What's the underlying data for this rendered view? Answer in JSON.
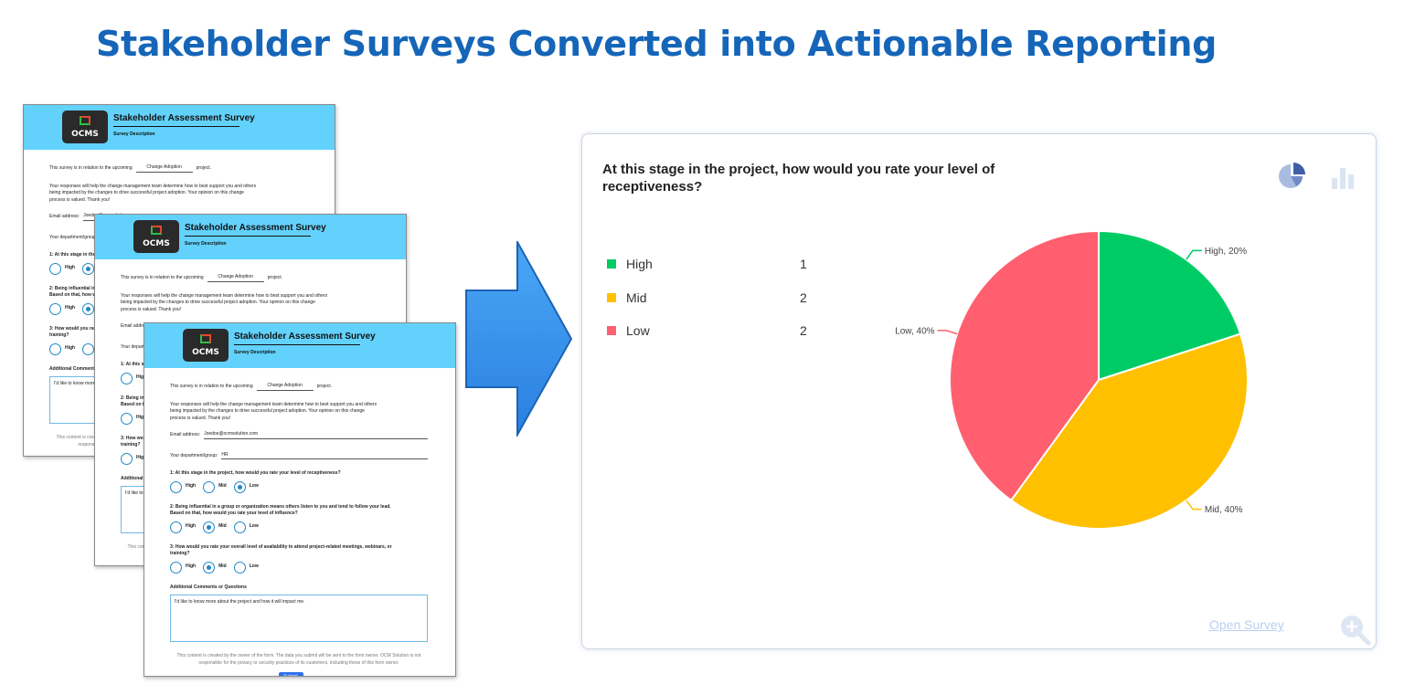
{
  "page": {
    "title": "Stakeholder Surveys Converted into Actionable Reporting"
  },
  "survey_form": {
    "logo_text": "OCMS",
    "title": "Stakeholder Assessment Survey",
    "description": "Survey Description",
    "relation_prefix": "This survey is in relation to the upcoming",
    "project_name": "Change Adoption",
    "relation_suffix": "project.",
    "intro": "Your responses will help the change management team determine how to best support you and others being impacted by the changes to drive successful project adoption. Your opinion on this change process is valued. Thank you!",
    "email_label": "Email address:",
    "email_value": "Joedoe@ocmsolution.com",
    "dept_label": "Your department/group:",
    "dept_value": "HR",
    "q1": "1: At this stage in the project, how would you rate your level of receptiveness?",
    "q2": "2: Being influential in a group or organization means others listen to you and tend to follow your lead. Based on that, how would you rate your level of influence?",
    "q3": "3: How would you rate your overall level of availability to attend project-related meetings, webinars, or training?",
    "options": [
      "High",
      "Mid",
      "Low"
    ],
    "comments_label": "Additional Comments or Questions",
    "comments_value": "I'd like to know more about the project and how it will impact me.",
    "footer": "This content is created by the owner of the form. The data you submit will be sent to the form owner. OCM Solution is not responsible for the privacy or security practices of its customers, including those of this form owner.",
    "submit_label": "Submit"
  },
  "report": {
    "question": "At this stage in the project, how would you rate your level of receptiveness?",
    "open_survey_label": "Open Survey",
    "icons": [
      "pie-chart-icon",
      "bar-chart-icon",
      "zoom-in-icon"
    ]
  },
  "chart_data": {
    "type": "pie",
    "categories": [
      "High",
      "Mid",
      "Low"
    ],
    "values": [
      1,
      2,
      2
    ],
    "slice_labels": [
      "High, 20%",
      "Mid, 40%",
      "Low, 40%"
    ],
    "colors": [
      "#00cc66",
      "#ffc000",
      "#ff5f6e"
    ],
    "legend_placement": "left"
  }
}
